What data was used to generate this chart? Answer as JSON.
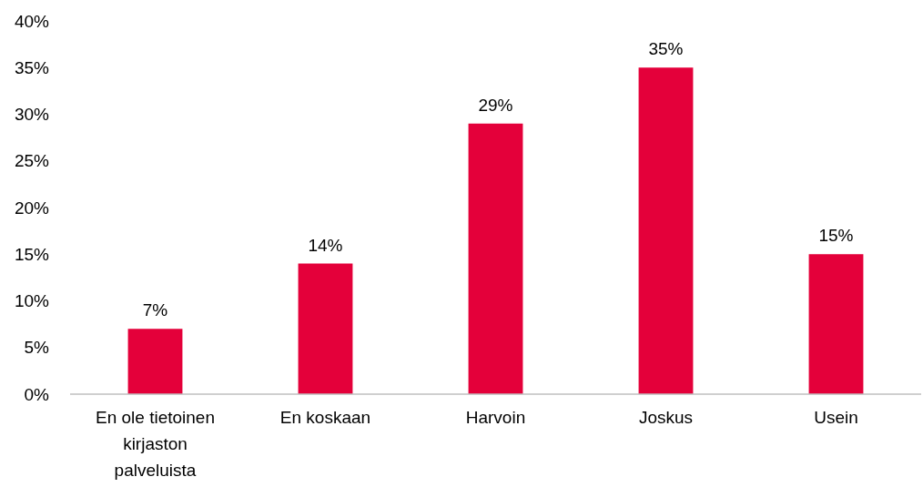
{
  "chart_data": {
    "type": "bar",
    "categories": [
      "En ole tietoinen kirjaston palveluista",
      "En koskaan",
      "Harvoin",
      "Joskus",
      "Usein"
    ],
    "values": [
      7,
      14,
      29,
      35,
      15
    ],
    "color": "#e4003a",
    "ylim": [
      0,
      40
    ],
    "yticks": [
      {
        "value": 0,
        "label": "0%"
      },
      {
        "value": 5,
        "label": "5%"
      },
      {
        "value": 10,
        "label": "10%"
      },
      {
        "value": 15,
        "label": "15%"
      },
      {
        "value": 20,
        "label": "20%"
      },
      {
        "value": 25,
        "label": "25%"
      },
      {
        "value": 30,
        "label": "30%"
      },
      {
        "value": 35,
        "label": "35%"
      },
      {
        "value": 40,
        "label": "40%"
      }
    ],
    "value_labels": [
      "7%",
      "14%",
      "29%",
      "35%",
      "15%"
    ],
    "grid": false
  }
}
